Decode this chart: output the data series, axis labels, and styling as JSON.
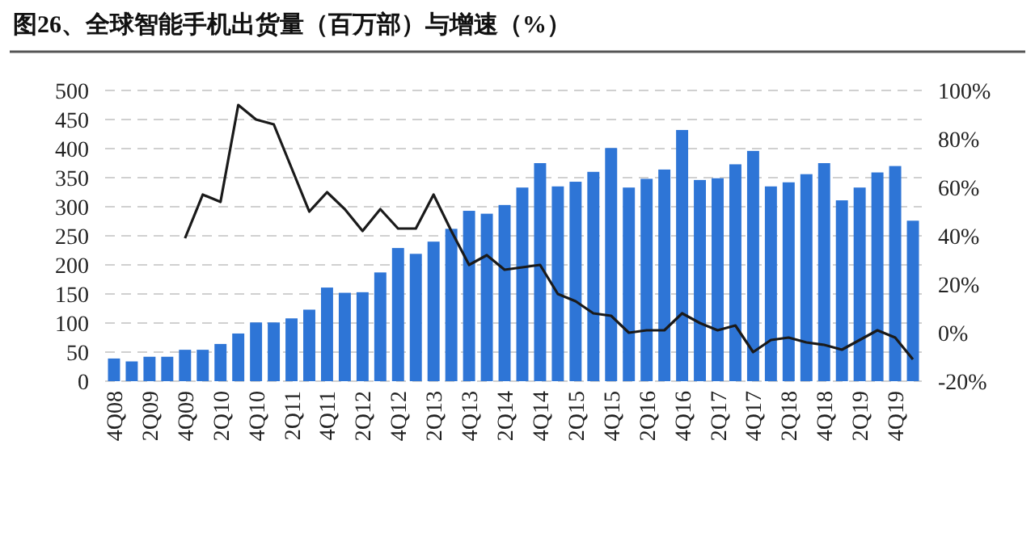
{
  "chart_data": {
    "type": "bar",
    "title": "图26、全球智能手机出货量（百万部）与增速（%）",
    "categories": [
      "4Q08",
      null,
      "2Q09",
      null,
      "4Q09",
      null,
      "2Q10",
      null,
      "4Q10",
      null,
      "2Q11",
      null,
      "4Q11",
      null,
      "2Q12",
      null,
      "4Q12",
      null,
      "2Q13",
      null,
      "4Q13",
      null,
      "2Q14",
      null,
      "4Q14",
      null,
      "2Q15",
      null,
      "4Q15",
      null,
      "2Q16",
      null,
      "4Q16",
      null,
      "2Q17",
      null,
      "4Q17",
      null,
      "2Q18",
      null,
      "4Q18",
      null,
      "2Q19",
      null,
      "4Q19",
      null
    ],
    "series": [
      {
        "color": "#2e75d6",
        "values": [
          39,
          34,
          42,
          42,
          54,
          54,
          64,
          82,
          101,
          101,
          108,
          123,
          161,
          152,
          153,
          187,
          229,
          219,
          240,
          262,
          293,
          288,
          303,
          333,
          375,
          335,
          343,
          360,
          401,
          333,
          348,
          364,
          432,
          346,
          349,
          373,
          396,
          335,
          342,
          356,
          375,
          311,
          333,
          359,
          370,
          276
        ]
      },
      {
        "type": "line",
        "axis": "y2",
        "color": "#1a1a1a",
        "values": [
          null,
          null,
          null,
          null,
          39,
          57,
          54,
          94,
          88,
          86,
          68,
          50,
          58,
          51,
          42,
          51,
          43,
          43,
          57,
          42,
          28,
          32,
          26,
          27,
          28,
          16,
          13,
          8,
          7,
          0,
          1,
          1,
          8,
          4,
          1,
          3,
          -8,
          -3,
          -2,
          -4,
          -5,
          -7,
          -3,
          1,
          -2,
          -11
        ]
      }
    ],
    "ylim": [
      0,
      500
    ],
    "yticks": [
      0,
      50,
      100,
      150,
      200,
      250,
      300,
      350,
      400,
      450,
      500
    ],
    "y2lim": [
      -20,
      100
    ],
    "y2ticks": [
      {
        "value": -20,
        "label": "-20%"
      },
      {
        "value": 0,
        "label": "0%"
      },
      {
        "value": 20,
        "label": "20%"
      },
      {
        "value": 40,
        "label": "40%"
      },
      {
        "value": 60,
        "label": "60%"
      },
      {
        "value": 80,
        "label": "80%"
      },
      {
        "value": 100,
        "label": "100%"
      }
    ],
    "grid": "y"
  }
}
